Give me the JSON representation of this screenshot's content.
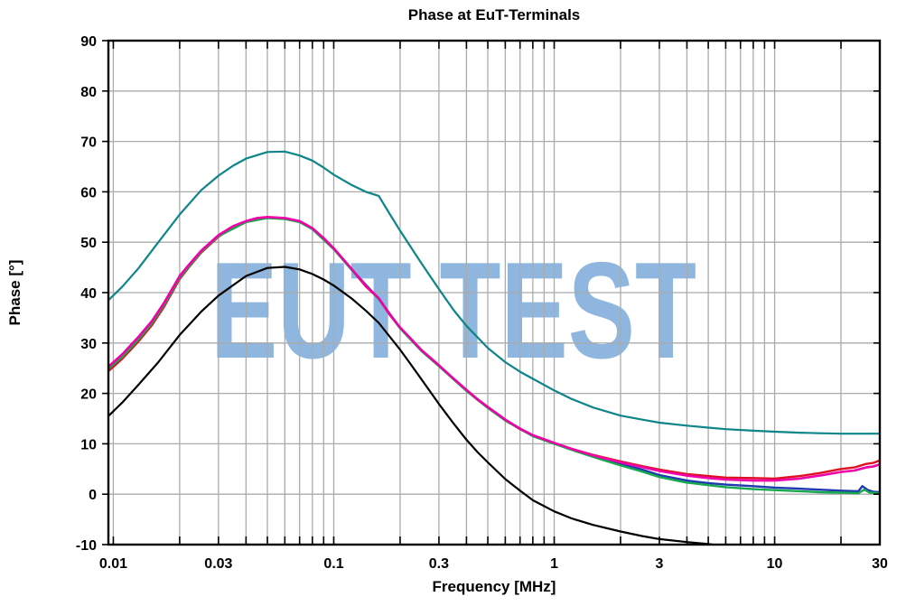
{
  "chart_data": {
    "type": "line",
    "title": "Phase at EuT-Terminals",
    "xlabel": "Frequency [MHz]",
    "ylabel": "Phase [°]",
    "x_scale": "log",
    "xlim": [
      0.0095,
      30
    ],
    "ylim": [
      -10,
      90
    ],
    "grid": true,
    "legend": "none",
    "x_ticks_labeled": [
      0.01,
      0.03,
      0.1,
      0.3,
      1,
      3,
      10,
      30
    ],
    "x_tick_labels": [
      "0.01",
      "0.03",
      "0.1",
      "0.3",
      "1",
      "3",
      "10",
      "30"
    ],
    "y_ticks": [
      -10,
      0,
      10,
      20,
      30,
      40,
      50,
      60,
      70,
      80,
      90
    ],
    "y_tick_labels": [
      "-10",
      "0",
      "10",
      "20",
      "30",
      "40",
      "50",
      "60",
      "70",
      "80",
      "90"
    ],
    "watermark": {
      "text": "EUT TEST",
      "color": "#7aa9d8"
    },
    "colors": {
      "grid": "#ababab",
      "axis": "#000000",
      "title": "#000000"
    },
    "series": [
      {
        "name": "blue-trace",
        "color": "#2038b0",
        "width": 2.4,
        "points": [
          [
            0.0095,
            25.1
          ],
          [
            0.011,
            27.5
          ],
          [
            0.013,
            30.9
          ],
          [
            0.015,
            34.2
          ],
          [
            0.017,
            37.8
          ],
          [
            0.02,
            43.1
          ],
          [
            0.025,
            48.2
          ],
          [
            0.03,
            51.3
          ],
          [
            0.04,
            54.1
          ],
          [
            0.05,
            54.9
          ],
          [
            0.06,
            54.7
          ],
          [
            0.07,
            54.1
          ],
          [
            0.08,
            52.7
          ],
          [
            0.1,
            48.7
          ],
          [
            0.12,
            44.7
          ],
          [
            0.16,
            38.8
          ],
          [
            0.2,
            33.0
          ],
          [
            0.25,
            28.5
          ],
          [
            0.3,
            25.5
          ],
          [
            0.4,
            20.6
          ],
          [
            0.5,
            17.2
          ],
          [
            0.6,
            14.7
          ],
          [
            0.8,
            11.6
          ],
          [
            1,
            10.1
          ],
          [
            1.2,
            8.9
          ],
          [
            1.5,
            7.6
          ],
          [
            2,
            6.0
          ],
          [
            2.5,
            4.9
          ],
          [
            3,
            3.8
          ],
          [
            4,
            2.7
          ],
          [
            5,
            2.2
          ],
          [
            6,
            1.9
          ],
          [
            8,
            1.6
          ],
          [
            10,
            1.3
          ],
          [
            13,
            1.1
          ],
          [
            16,
            0.9
          ],
          [
            20,
            0.7
          ],
          [
            24,
            0.6
          ],
          [
            25,
            1.6
          ],
          [
            26.5,
            0.8
          ],
          [
            28,
            0.5
          ],
          [
            30,
            0.4
          ]
        ]
      },
      {
        "name": "red-trace",
        "color": "#dd1122",
        "width": 2.4,
        "points": [
          [
            0.0095,
            24.4
          ],
          [
            0.011,
            26.9
          ],
          [
            0.013,
            30.3
          ],
          [
            0.015,
            33.6
          ],
          [
            0.017,
            37.2
          ],
          [
            0.02,
            42.7
          ],
          [
            0.022,
            45.0
          ],
          [
            0.025,
            47.9
          ],
          [
            0.03,
            51.1
          ],
          [
            0.035,
            53.0
          ],
          [
            0.04,
            54.1
          ],
          [
            0.045,
            54.7
          ],
          [
            0.05,
            54.9
          ],
          [
            0.06,
            54.7
          ],
          [
            0.07,
            54.1
          ],
          [
            0.08,
            52.7
          ],
          [
            0.09,
            50.7
          ],
          [
            0.1,
            48.7
          ],
          [
            0.12,
            44.7
          ],
          [
            0.14,
            41.2
          ],
          [
            0.16,
            38.8
          ],
          [
            0.18,
            35.5
          ],
          [
            0.2,
            33.0
          ],
          [
            0.22,
            31.1
          ],
          [
            0.25,
            28.5
          ],
          [
            0.3,
            25.5
          ],
          [
            0.35,
            22.8
          ],
          [
            0.4,
            20.6
          ],
          [
            0.45,
            18.7
          ],
          [
            0.5,
            17.2
          ],
          [
            0.6,
            14.7
          ],
          [
            0.7,
            12.9
          ],
          [
            0.8,
            11.6
          ],
          [
            0.9,
            10.8
          ],
          [
            1,
            10.1
          ],
          [
            1.2,
            9.0
          ],
          [
            1.5,
            7.8
          ],
          [
            2,
            6.5
          ],
          [
            2.5,
            5.6
          ],
          [
            3,
            4.9
          ],
          [
            4,
            4.0
          ],
          [
            5,
            3.6
          ],
          [
            6,
            3.3
          ],
          [
            8,
            3.2
          ],
          [
            10,
            3.1
          ],
          [
            13,
            3.6
          ],
          [
            16,
            4.2
          ],
          [
            20,
            5.0
          ],
          [
            23,
            5.3
          ],
          [
            26,
            6.0
          ],
          [
            28,
            6.2
          ],
          [
            30,
            6.7
          ]
        ]
      },
      {
        "name": "green-trace",
        "color": "#17a94f",
        "width": 2.4,
        "points": [
          [
            0.0095,
            24.9
          ],
          [
            0.011,
            27.3
          ],
          [
            0.013,
            30.7
          ],
          [
            0.015,
            34.0
          ],
          [
            0.017,
            37.6
          ],
          [
            0.02,
            43.0
          ],
          [
            0.025,
            48.1
          ],
          [
            0.03,
            51.2
          ],
          [
            0.04,
            54.0
          ],
          [
            0.05,
            54.8
          ],
          [
            0.06,
            54.6
          ],
          [
            0.07,
            54.0
          ],
          [
            0.08,
            52.6
          ],
          [
            0.1,
            48.6
          ],
          [
            0.12,
            44.6
          ],
          [
            0.16,
            38.7
          ],
          [
            0.2,
            32.9
          ],
          [
            0.25,
            28.4
          ],
          [
            0.3,
            25.4
          ],
          [
            0.4,
            20.5
          ],
          [
            0.5,
            17.1
          ],
          [
            0.6,
            14.6
          ],
          [
            0.8,
            11.5
          ],
          [
            1,
            10.0
          ],
          [
            1.2,
            8.8
          ],
          [
            1.5,
            7.4
          ],
          [
            2,
            5.7
          ],
          [
            2.5,
            4.5
          ],
          [
            3,
            3.4
          ],
          [
            4,
            2.3
          ],
          [
            5,
            1.8
          ],
          [
            6,
            1.4
          ],
          [
            8,
            1.0
          ],
          [
            10,
            0.8
          ],
          [
            13,
            0.6
          ],
          [
            16,
            0.4
          ],
          [
            20,
            0.3
          ],
          [
            24,
            0.2
          ],
          [
            25.5,
            0.9
          ],
          [
            27,
            0.3
          ],
          [
            30,
            0.2
          ]
        ]
      },
      {
        "name": "magenta-trace",
        "color": "#f000a8",
        "width": 2.6,
        "points": [
          [
            0.0095,
            25.3
          ],
          [
            0.011,
            27.8
          ],
          [
            0.013,
            31.2
          ],
          [
            0.015,
            34.4
          ],
          [
            0.017,
            38.0
          ],
          [
            0.02,
            43.3
          ],
          [
            0.022,
            45.5
          ],
          [
            0.025,
            48.3
          ],
          [
            0.03,
            51.4
          ],
          [
            0.035,
            53.2
          ],
          [
            0.04,
            54.2
          ],
          [
            0.045,
            54.8
          ],
          [
            0.05,
            55.0
          ],
          [
            0.06,
            54.8
          ],
          [
            0.07,
            54.2
          ],
          [
            0.08,
            52.8
          ],
          [
            0.09,
            50.8
          ],
          [
            0.1,
            48.8
          ],
          [
            0.12,
            44.8
          ],
          [
            0.14,
            41.3
          ],
          [
            0.16,
            38.9
          ],
          [
            0.18,
            35.6
          ],
          [
            0.2,
            33.1
          ],
          [
            0.22,
            31.2
          ],
          [
            0.25,
            28.6
          ],
          [
            0.3,
            25.6
          ],
          [
            0.35,
            22.9
          ],
          [
            0.4,
            20.7
          ],
          [
            0.45,
            18.8
          ],
          [
            0.5,
            17.3
          ],
          [
            0.6,
            14.8
          ],
          [
            0.7,
            13.0
          ],
          [
            0.8,
            11.7
          ],
          [
            0.9,
            10.9
          ],
          [
            1,
            10.2
          ],
          [
            1.2,
            9.0
          ],
          [
            1.5,
            7.7
          ],
          [
            2,
            6.3
          ],
          [
            2.5,
            5.4
          ],
          [
            3,
            4.6
          ],
          [
            4,
            3.7
          ],
          [
            5,
            3.2
          ],
          [
            6,
            2.9
          ],
          [
            8,
            2.7
          ],
          [
            10,
            2.7
          ],
          [
            13,
            3.1
          ],
          [
            16,
            3.7
          ],
          [
            20,
            4.4
          ],
          [
            23,
            4.7
          ],
          [
            26,
            5.3
          ],
          [
            28,
            5.5
          ],
          [
            30,
            5.9
          ]
        ]
      },
      {
        "name": "teal-trace",
        "color": "#0d8589",
        "width": 2.2,
        "points": [
          [
            0.0095,
            38.5
          ],
          [
            0.011,
            41.2
          ],
          [
            0.013,
            44.8
          ],
          [
            0.016,
            50.0
          ],
          [
            0.02,
            55.5
          ],
          [
            0.025,
            60.3
          ],
          [
            0.03,
            63.2
          ],
          [
            0.035,
            65.2
          ],
          [
            0.04,
            66.6
          ],
          [
            0.05,
            67.9
          ],
          [
            0.06,
            68.0
          ],
          [
            0.07,
            67.2
          ],
          [
            0.08,
            66.2
          ],
          [
            0.09,
            64.8
          ],
          [
            0.1,
            63.4
          ],
          [
            0.12,
            61.4
          ],
          [
            0.14,
            60.0
          ],
          [
            0.16,
            59.2
          ],
          [
            0.18,
            55.5
          ],
          [
            0.2,
            52.3
          ],
          [
            0.25,
            45.8
          ],
          [
            0.3,
            40.7
          ],
          [
            0.35,
            36.5
          ],
          [
            0.4,
            33.4
          ],
          [
            0.5,
            29.0
          ],
          [
            0.6,
            26.2
          ],
          [
            0.7,
            24.3
          ],
          [
            0.8,
            22.9
          ],
          [
            1,
            20.6
          ],
          [
            1.2,
            18.9
          ],
          [
            1.5,
            17.2
          ],
          [
            2,
            15.6
          ],
          [
            2.5,
            14.8
          ],
          [
            3,
            14.2
          ],
          [
            4,
            13.6
          ],
          [
            5,
            13.2
          ],
          [
            6,
            12.9
          ],
          [
            8,
            12.6
          ],
          [
            10,
            12.4
          ],
          [
            13,
            12.2
          ],
          [
            16,
            12.1
          ],
          [
            20,
            12.0
          ],
          [
            25,
            12.0
          ],
          [
            30,
            12.0
          ]
        ]
      },
      {
        "name": "black-trace",
        "color": "#000000",
        "width": 2.2,
        "points": [
          [
            0.0095,
            15.5
          ],
          [
            0.011,
            18.2
          ],
          [
            0.013,
            21.7
          ],
          [
            0.016,
            26.2
          ],
          [
            0.02,
            31.6
          ],
          [
            0.025,
            36.2
          ],
          [
            0.03,
            39.4
          ],
          [
            0.04,
            43.3
          ],
          [
            0.05,
            44.9
          ],
          [
            0.06,
            45.1
          ],
          [
            0.07,
            44.6
          ],
          [
            0.08,
            43.7
          ],
          [
            0.09,
            42.6
          ],
          [
            0.1,
            41.4
          ],
          [
            0.12,
            38.9
          ],
          [
            0.14,
            36.4
          ],
          [
            0.16,
            34.0
          ],
          [
            0.2,
            28.7
          ],
          [
            0.22,
            26.2
          ],
          [
            0.25,
            22.8
          ],
          [
            0.3,
            17.9
          ],
          [
            0.35,
            14.0
          ],
          [
            0.4,
            10.8
          ],
          [
            0.45,
            8.3
          ],
          [
            0.5,
            6.3
          ],
          [
            0.6,
            3.0
          ],
          [
            0.7,
            0.7
          ],
          [
            0.8,
            -1.2
          ],
          [
            1,
            -3.4
          ],
          [
            1.2,
            -4.8
          ],
          [
            1.5,
            -6.1
          ],
          [
            2,
            -7.4
          ],
          [
            2.5,
            -8.3
          ],
          [
            3,
            -8.9
          ],
          [
            4,
            -9.5
          ],
          [
            5,
            -9.9
          ],
          [
            5.9,
            -10.3
          ]
        ]
      }
    ]
  }
}
